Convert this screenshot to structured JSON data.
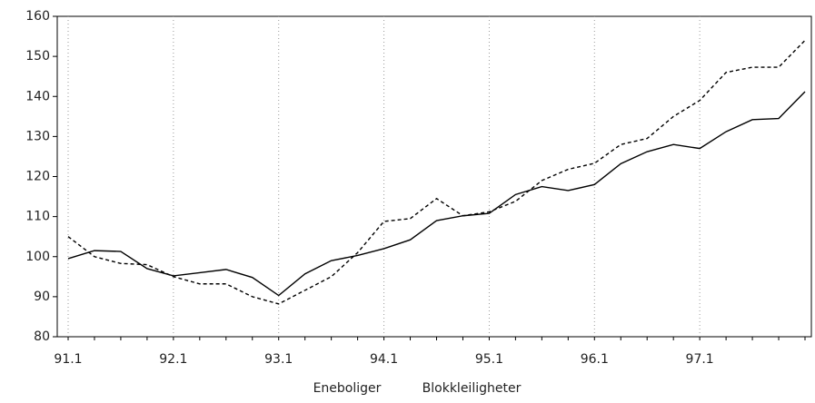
{
  "chart_data": {
    "type": "line",
    "categories": [
      "91.1",
      null,
      null,
      null,
      "92.1",
      null,
      null,
      null,
      "93.1",
      null,
      null,
      null,
      "94.1",
      null,
      null,
      null,
      "95.1",
      null,
      null,
      null,
      "96.1",
      null,
      null,
      null,
      "97.1",
      null,
      null,
      null,
      null
    ],
    "series": [
      {
        "name": "Eneboliger",
        "color": "#000000",
        "dash": "solid",
        "values": [
          99.5,
          101.5,
          101.3,
          97,
          95.2,
          96,
          96.8,
          94.8,
          90.3,
          95.7,
          99,
          100.3,
          102,
          104.2,
          109,
          110.2,
          110.8,
          115.5,
          117.5,
          116.5,
          118,
          123.2,
          126.2,
          128,
          127,
          131.2,
          134.2,
          134.5,
          141.2
        ]
      },
      {
        "name": "Blokkleiligheter",
        "color": "#000000",
        "dash": "dashed",
        "values": [
          105,
          100,
          98.3,
          98,
          95,
          93.2,
          93.2,
          90,
          88.2,
          91.6,
          95,
          101,
          108.8,
          109.5,
          114.5,
          110.2,
          111.2,
          113.8,
          119,
          121.8,
          123.3,
          128,
          129.5,
          135,
          139,
          146,
          147.3,
          147.3,
          154
        ]
      }
    ],
    "ylim": [
      80,
      160
    ],
    "yticks": [
      80,
      90,
      100,
      110,
      120,
      130,
      140,
      150,
      160
    ],
    "grid": true,
    "legend": "bottom"
  }
}
